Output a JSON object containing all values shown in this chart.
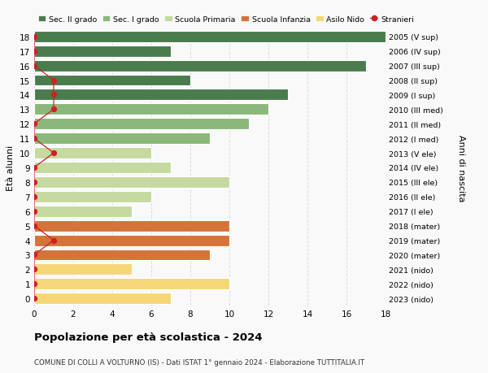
{
  "ages": [
    18,
    17,
    16,
    15,
    14,
    13,
    12,
    11,
    10,
    9,
    8,
    7,
    6,
    5,
    4,
    3,
    2,
    1,
    0
  ],
  "right_labels": [
    "2005 (V sup)",
    "2006 (IV sup)",
    "2007 (III sup)",
    "2008 (II sup)",
    "2009 (I sup)",
    "2010 (III med)",
    "2011 (II med)",
    "2012 (I med)",
    "2013 (V ele)",
    "2014 (IV ele)",
    "2015 (III ele)",
    "2016 (II ele)",
    "2017 (I ele)",
    "2018 (mater)",
    "2019 (mater)",
    "2020 (mater)",
    "2021 (nido)",
    "2022 (nido)",
    "2023 (nido)"
  ],
  "bar_values": [
    18,
    7,
    17,
    8,
    13,
    12,
    11,
    9,
    6,
    7,
    10,
    6,
    5,
    10,
    10,
    9,
    5,
    10,
    7
  ],
  "bar_colors": [
    "#4a7c4e",
    "#4a7c4e",
    "#4a7c4e",
    "#4a7c4e",
    "#4a7c4e",
    "#8ab87a",
    "#8ab87a",
    "#8ab87a",
    "#c5d9a0",
    "#c5d9a0",
    "#c5d9a0",
    "#c5d9a0",
    "#c5d9a0",
    "#d4743a",
    "#d4743a",
    "#d4743a",
    "#f5d778",
    "#f5d778",
    "#f5d778"
  ],
  "stranieri_by_age": {
    "18": 0,
    "17": 0,
    "16": 0,
    "15": 1,
    "14": 1,
    "13": 1,
    "12": 0,
    "11": 0,
    "10": 1,
    "9": 0,
    "8": 0,
    "7": 0,
    "6": 0,
    "5": 0,
    "4": 1,
    "3": 0,
    "2": 0,
    "1": 0,
    "0": 0
  },
  "legend_labels": [
    "Sec. II grado",
    "Sec. I grado",
    "Scuola Primaria",
    "Scuola Infanzia",
    "Asilo Nido",
    "Stranieri"
  ],
  "legend_colors": [
    "#4a7c4e",
    "#8ab87a",
    "#c5d9a0",
    "#d4743a",
    "#f5d778",
    "#cc2222"
  ],
  "title": "Popolazione per età scolastica - 2024",
  "subtitle": "COMUNE DI COLLI A VOLTURNO (IS) - Dati ISTAT 1° gennaio 2024 - Elaborazione TUTTITALIA.IT",
  "ylabel_left": "Età alunni",
  "ylabel_right": "Anni di nascita",
  "xlim": [
    0,
    18
  ],
  "xticks": [
    0,
    2,
    4,
    6,
    8,
    10,
    12,
    14,
    16,
    18
  ],
  "background_color": "#f9f9f9",
  "grid_color": "#dddddd",
  "bar_height": 0.78,
  "bar_edge_color": "white",
  "bar_edge_width": 0.8
}
